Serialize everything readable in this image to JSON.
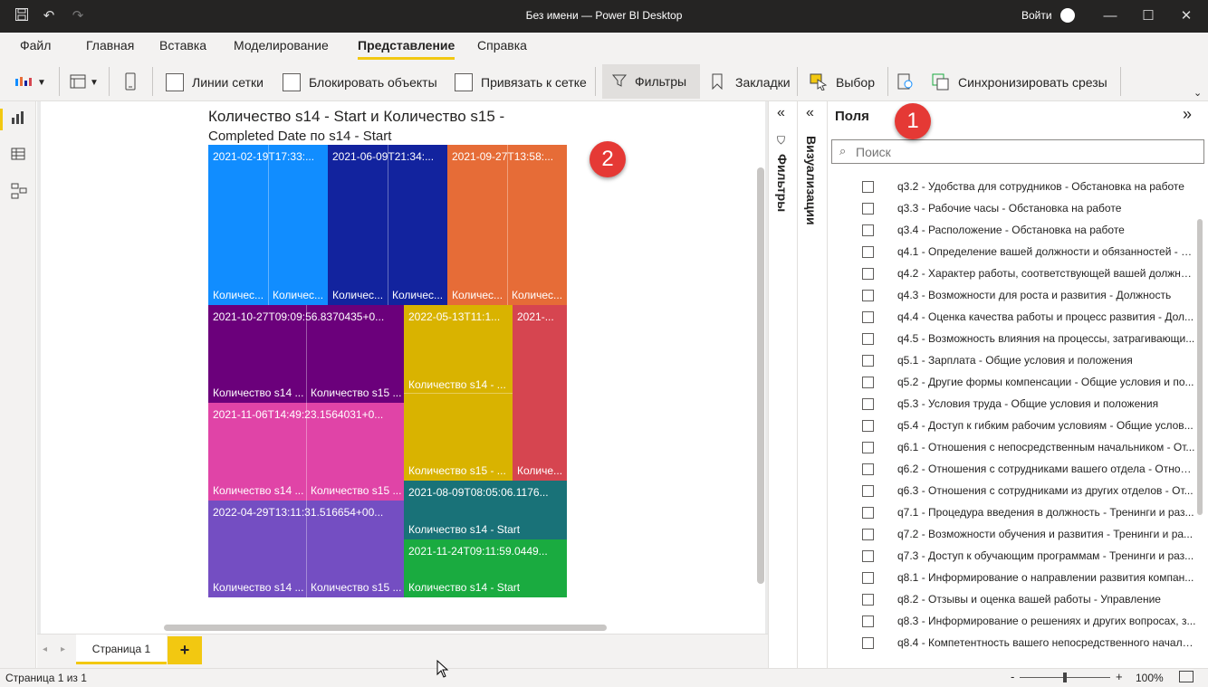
{
  "window": {
    "title": "Без имени — Power BI Desktop",
    "signin": "Войти"
  },
  "menu": {
    "file": "Файл",
    "home": "Главная",
    "insert": "Вставка",
    "modeling": "Моделирование",
    "view": "Представление",
    "help": "Справка"
  },
  "ribbon": {
    "gridlines": "Линии сетки",
    "lock_objects": "Блокировать объекты",
    "snap_to_grid": "Привязать к сетке",
    "filters": "Фильтры",
    "bookmarks": "Закладки",
    "selection": "Выбор",
    "sync_slicers": "Синхронизировать срезы"
  },
  "visual": {
    "title_line1": "Количество s14 - Start и Количество s15 -",
    "title_line2": "Completed Date по s14 - Start",
    "tiles": [
      {
        "top": "2021-02-19T17:33:...",
        "bot1": "Количес...",
        "bot2": "Количес...",
        "color": "#118dff"
      },
      {
        "top": "2021-06-09T21:34:...",
        "bot1": "Количес...",
        "bot2": "Количес...",
        "color": "#12239e"
      },
      {
        "top": "2021-09-27T13:58:...",
        "bot1": "Количес...",
        "bot2": "Количес...",
        "color": "#e66c37"
      },
      {
        "top": "2021-10-27T09:09:56.8370435+0...",
        "bot1": "Количество s14 ...",
        "bot2": "Количество s15 ...",
        "color": "#6b007b"
      },
      {
        "top": "2022-05-13T11:1...",
        "bot1": "Количество s14 - ...",
        "bot2": "Количество s15 - ...",
        "color": "#d9b300"
      },
      {
        "top": "2021-...",
        "bot1": "Количе...",
        "color": "#d64550"
      },
      {
        "top": "2021-11-06T14:49:23.1564031+0...",
        "bot1": "Количество s14 ...",
        "bot2": "Количество s15 ...",
        "color": "#e044a7"
      },
      {
        "top": "2021-08-09T08:05:06.1176...",
        "bot1": "Количество s14 - Start",
        "color": "#197278"
      },
      {
        "top": "2022-04-29T13:11:31.516654+00...",
        "bot1": "Количество s14 ...",
        "bot2": "Количество s15 ...",
        "color": "#744ec2"
      },
      {
        "top": "2021-11-24T09:11:59.0449...",
        "bot1": "Количество s14 - Start",
        "color": "#1aab40"
      }
    ]
  },
  "panes": {
    "filters": "Фильтры",
    "visualizations": "Визуализации",
    "fields": "Поля",
    "search_placeholder": "Поиск"
  },
  "fields": [
    "q3.2 - Удобства для сотрудников - Обстановка на работе",
    "q3.3 - Рабочие часы - Обстановка на работе",
    "q3.4 - Расположение - Обстановка на работе",
    "q4.1 - Определение вашей должности и обязанностей - Д...",
    "q4.2 - Характер работы, соответствующей вашей должнос...",
    "q4.3 - Возможности для роста и развития - Должность",
    "q4.4 - Оценка качества работы и процесс развития - Дол...",
    "q4.5 - Возможность влияния на процессы, затрагивающи...",
    "q5.1 - Зарплата - Общие условия и положения",
    "q5.2 - Другие формы компенсации - Общие условия и по...",
    "q5.3 - Условия труда - Общие условия и положения",
    "q5.4 - Доступ к гибким рабочим условиям - Общие услов...",
    "q6.1 - Отношения с непосредственным начальником - От...",
    "q6.2 - Отношения с сотрудниками вашего отдела - Отнош...",
    "q6.3 - Отношения с сотрудниками из других отделов - От...",
    "q7.1 - Процедура введения в должность - Тренинги и раз...",
    "q7.2 - Возможности обучения и развития - Тренинги и ра...",
    "q7.3 - Доступ к обучающим программам - Тренинги и раз...",
    "q8.1 - Информирование о направлении развития компан...",
    "q8.2 - Отзывы и оценка вашей работы - Управление",
    "q8.3 - Информирование о решениях и других вопросах, з...",
    "q8.4 - Компетентность вашего непосредственного началь..."
  ],
  "tabs": {
    "page1": "Страница 1",
    "add": "+"
  },
  "status": {
    "page": "Страница 1 из 1",
    "zoom": "100%",
    "minus": "-",
    "plus": "+"
  },
  "badges": {
    "one": "1",
    "two": "2"
  }
}
